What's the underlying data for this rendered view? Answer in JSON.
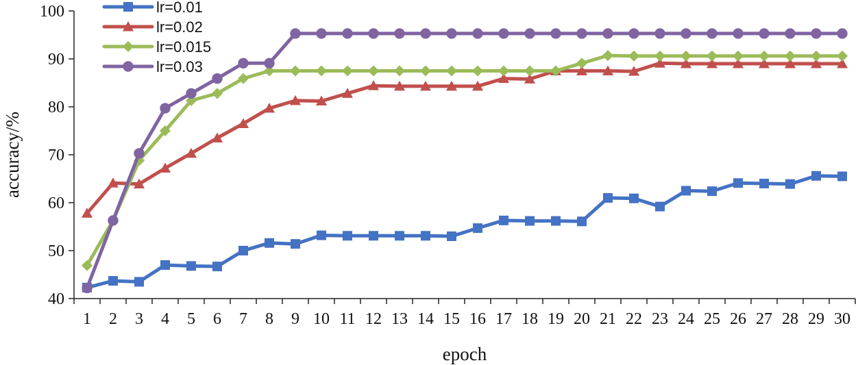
{
  "chart_data": {
    "type": "line",
    "xlabel": "epoch",
    "ylabel": "accuracy/%",
    "ylim": [
      40,
      100
    ],
    "yticks": [
      40,
      50,
      60,
      70,
      80,
      90,
      100
    ],
    "x": [
      1,
      2,
      3,
      4,
      5,
      6,
      7,
      8,
      9,
      10,
      11,
      12,
      13,
      14,
      15,
      16,
      17,
      18,
      19,
      20,
      21,
      22,
      23,
      24,
      25,
      26,
      27,
      28,
      29,
      30
    ],
    "grid": false,
    "legend_position": "top-left",
    "series": [
      {
        "name": "lr=0.01",
        "color": "#4472C4",
        "marker": "square",
        "values": [
          42.3,
          43.7,
          43.5,
          47.0,
          46.8,
          46.7,
          50.0,
          51.6,
          51.4,
          53.2,
          53.1,
          53.1,
          53.1,
          53.1,
          53.0,
          54.7,
          56.3,
          56.2,
          56.2,
          56.1,
          61.0,
          60.9,
          59.2,
          62.5,
          62.4,
          64.1,
          64.0,
          63.9,
          65.6,
          65.5
        ]
      },
      {
        "name": "lr=0.02",
        "color": "#C0504D",
        "marker": "triangle",
        "values": [
          57.8,
          64.1,
          63.9,
          67.2,
          70.3,
          73.5,
          76.5,
          79.7,
          81.3,
          81.2,
          82.8,
          84.4,
          84.3,
          84.3,
          84.3,
          84.3,
          85.9,
          85.8,
          87.5,
          87.5,
          87.5,
          87.4,
          89.1,
          89.0,
          89.0,
          89.0,
          89.0,
          89.0,
          89.0,
          89.0
        ]
      },
      {
        "name": "lr=0.015",
        "color": "#9BBB59",
        "marker": "diamond",
        "values": [
          46.9,
          56.3,
          68.8,
          75.0,
          81.3,
          82.8,
          85.9,
          87.5,
          87.5,
          87.5,
          87.5,
          87.5,
          87.5,
          87.5,
          87.5,
          87.5,
          87.5,
          87.5,
          87.5,
          89.1,
          90.7,
          90.6,
          90.6,
          90.6,
          90.6,
          90.6,
          90.6,
          90.6,
          90.6,
          90.6
        ]
      },
      {
        "name": "lr=0.03",
        "color": "#8064A2",
        "marker": "circle",
        "values": [
          42.2,
          56.3,
          70.3,
          79.7,
          82.8,
          85.9,
          89.1,
          89.1,
          95.3,
          95.3,
          95.3,
          95.3,
          95.3,
          95.3,
          95.3,
          95.3,
          95.3,
          95.3,
          95.3,
          95.3,
          95.3,
          95.3,
          95.3,
          95.3,
          95.3,
          95.3,
          95.3,
          95.3,
          95.3,
          95.3
        ]
      }
    ]
  }
}
